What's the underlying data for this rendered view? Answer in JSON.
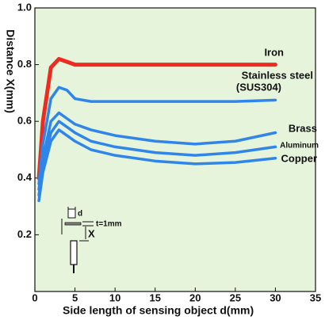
{
  "chart_data": {
    "type": "line",
    "x_label": "Side length of sensing object d(mm)",
    "y_label": "Distance X(mm)",
    "x": [
      0.5,
      1,
      2,
      3,
      4,
      5,
      7,
      10,
      15,
      20,
      25,
      30
    ],
    "series": [
      {
        "name": "Iron",
        "color": "#ee2b1f",
        "values": [
          0.4,
          0.6,
          0.79,
          0.82,
          0.81,
          0.8,
          0.8,
          0.8,
          0.8,
          0.8,
          0.8,
          0.8
        ]
      },
      {
        "name": "Stainless steel",
        "subname": "(SUS304)",
        "color": "#2f86e8",
        "values": [
          0.38,
          0.52,
          0.68,
          0.72,
          0.71,
          0.68,
          0.67,
          0.67,
          0.67,
          0.67,
          0.67,
          0.675
        ]
      },
      {
        "name": "Brass",
        "color": "#2f86e8",
        "values": [
          0.36,
          0.47,
          0.6,
          0.63,
          0.61,
          0.59,
          0.57,
          0.55,
          0.53,
          0.52,
          0.53,
          0.56
        ]
      },
      {
        "name": "Aluminum",
        "color": "#2f86e8",
        "values": [
          0.34,
          0.44,
          0.56,
          0.6,
          0.58,
          0.56,
          0.53,
          0.51,
          0.49,
          0.48,
          0.49,
          0.51
        ]
      },
      {
        "name": "Copper",
        "color": "#2f86e8",
        "values": [
          0.32,
          0.42,
          0.53,
          0.57,
          0.55,
          0.53,
          0.5,
          0.48,
          0.46,
          0.45,
          0.455,
          0.47
        ]
      }
    ],
    "xlim": [
      0,
      35
    ],
    "xticks": [
      0,
      5,
      10,
      15,
      20,
      25,
      30,
      35
    ],
    "ylim": [
      0,
      1
    ],
    "yticks": [
      0.2,
      0.4,
      0.6,
      0.8,
      {
        "value": 1,
        "label": "1.0"
      }
    ],
    "background": "#e6f4dc",
    "inset_labels": {
      "d": "d",
      "t": "t=1mm",
      "x": "X"
    }
  }
}
